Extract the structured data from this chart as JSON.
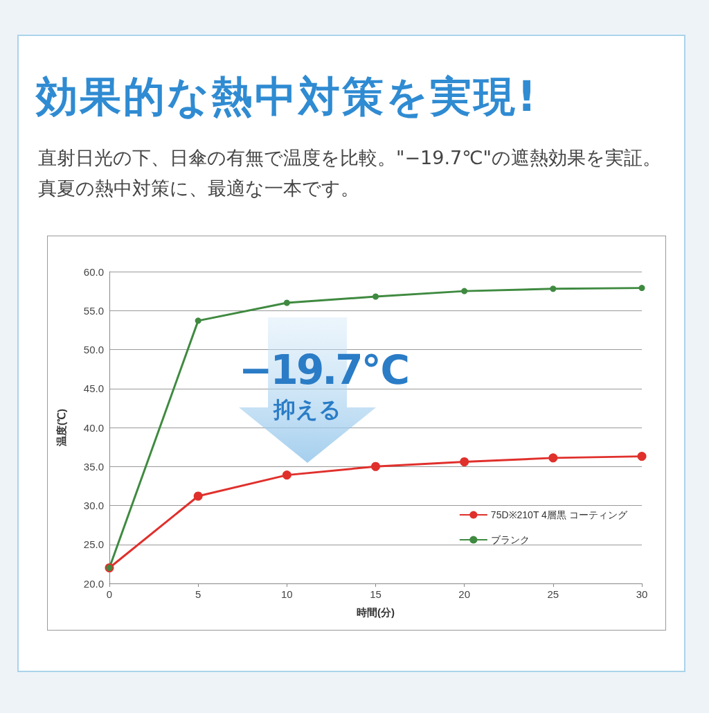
{
  "chart_data": {
    "type": "line",
    "title": "効果的な熱中対策を実現!",
    "subtitle": "直射日光の下、日傘の有無で温度を比較。\"−19.7℃\"の遮熱効果を実証。真夏の熱中対策に、最適な一本です。",
    "xlabel": "時間(分)",
    "ylabel": "温度(℃)",
    "annotations": [
      "−19.7℃",
      "抑える"
    ],
    "x": [
      0,
      5,
      10,
      15,
      20,
      25,
      30
    ],
    "series": [
      {
        "name": "75D※210T 4層黒 コーティング",
        "color": "#e0302c",
        "values": [
          22.0,
          31.2,
          33.9,
          35.0,
          35.6,
          36.1,
          36.3
        ]
      },
      {
        "name": "ブランク",
        "color": "#3f8a40",
        "values": [
          22.0,
          53.7,
          56.0,
          56.8,
          57.5,
          57.8,
          57.9
        ]
      }
    ],
    "xlim": [
      0,
      30
    ],
    "xticks": [
      0,
      5,
      10,
      15,
      20,
      25,
      30
    ],
    "ylim": [
      20,
      60
    ],
    "yticks": [
      {
        "value": 20,
        "label": "20.0"
      },
      {
        "value": 25,
        "label": "25.0"
      },
      {
        "value": 30,
        "label": "30.0"
      },
      {
        "value": 35,
        "label": "35.0"
      },
      {
        "value": 40,
        "label": "40.0"
      },
      {
        "value": 45,
        "label": "45.0"
      },
      {
        "value": 50,
        "label": "50.0"
      },
      {
        "value": 55,
        "label": "55.0"
      },
      {
        "value": 60,
        "label": "60.0"
      }
    ],
    "grid": "y",
    "legend": "right",
    "marker": "circle",
    "line_style": "solid"
  }
}
